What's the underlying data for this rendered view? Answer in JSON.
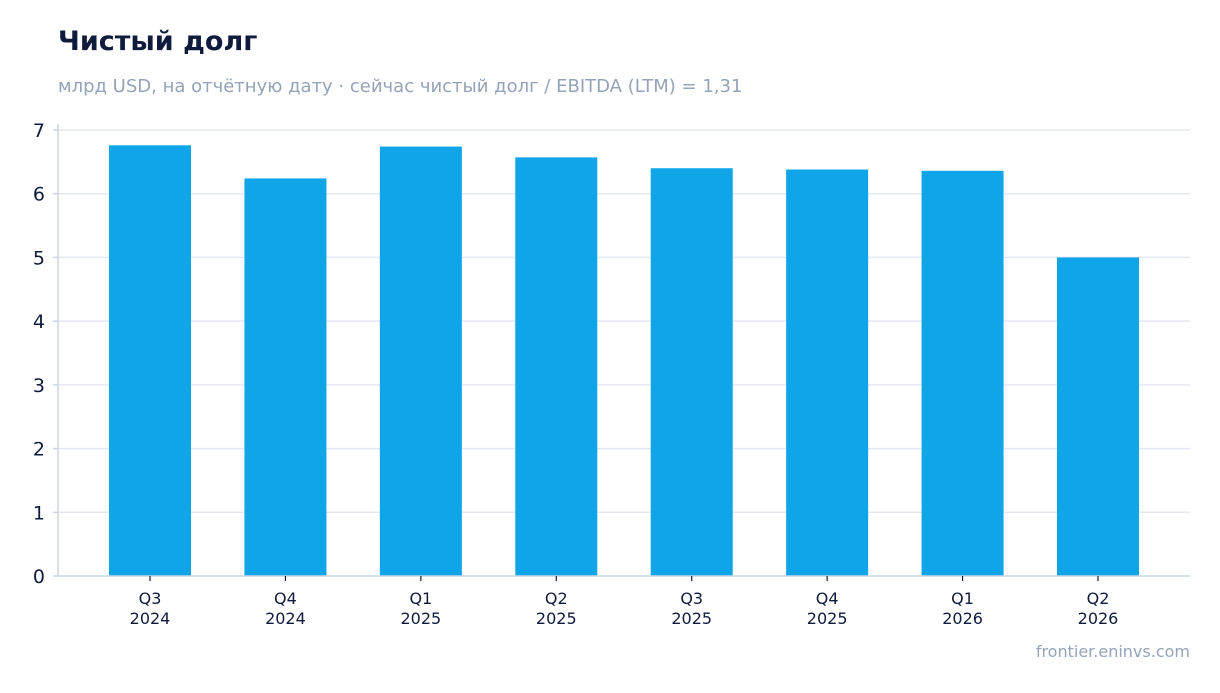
{
  "header": {
    "title": "Чистый долг",
    "subtitle": "млрд USD, на отчётную дату · сейчас чистый долг / EBITDA (LTM) = 1,31"
  },
  "footer": {
    "source": "frontier.eninvs.com"
  },
  "colors": {
    "bar": "#10a5e8",
    "grid": "#e4e8f0",
    "axis": "#cbd5e1",
    "text": "#0f1b3d",
    "muted": "#94a3b8"
  },
  "chart_data": {
    "type": "bar",
    "categories": [
      [
        "Q3",
        "2024"
      ],
      [
        "Q4",
        "2024"
      ],
      [
        "Q1",
        "2025"
      ],
      [
        "Q2",
        "2025"
      ],
      [
        "Q3",
        "2025"
      ],
      [
        "Q4",
        "2025"
      ],
      [
        "Q1",
        "2026"
      ],
      [
        "Q2",
        "2026"
      ]
    ],
    "values": [
      6.76,
      6.24,
      6.74,
      6.57,
      6.4,
      6.38,
      6.36,
      5.0
    ],
    "title": "Чистый долг",
    "xlabel": "",
    "ylabel": "",
    "ylim": [
      0,
      7
    ],
    "yticks": [
      0,
      1,
      2,
      3,
      4,
      5,
      6,
      7
    ],
    "grid": true,
    "legend": "none"
  }
}
